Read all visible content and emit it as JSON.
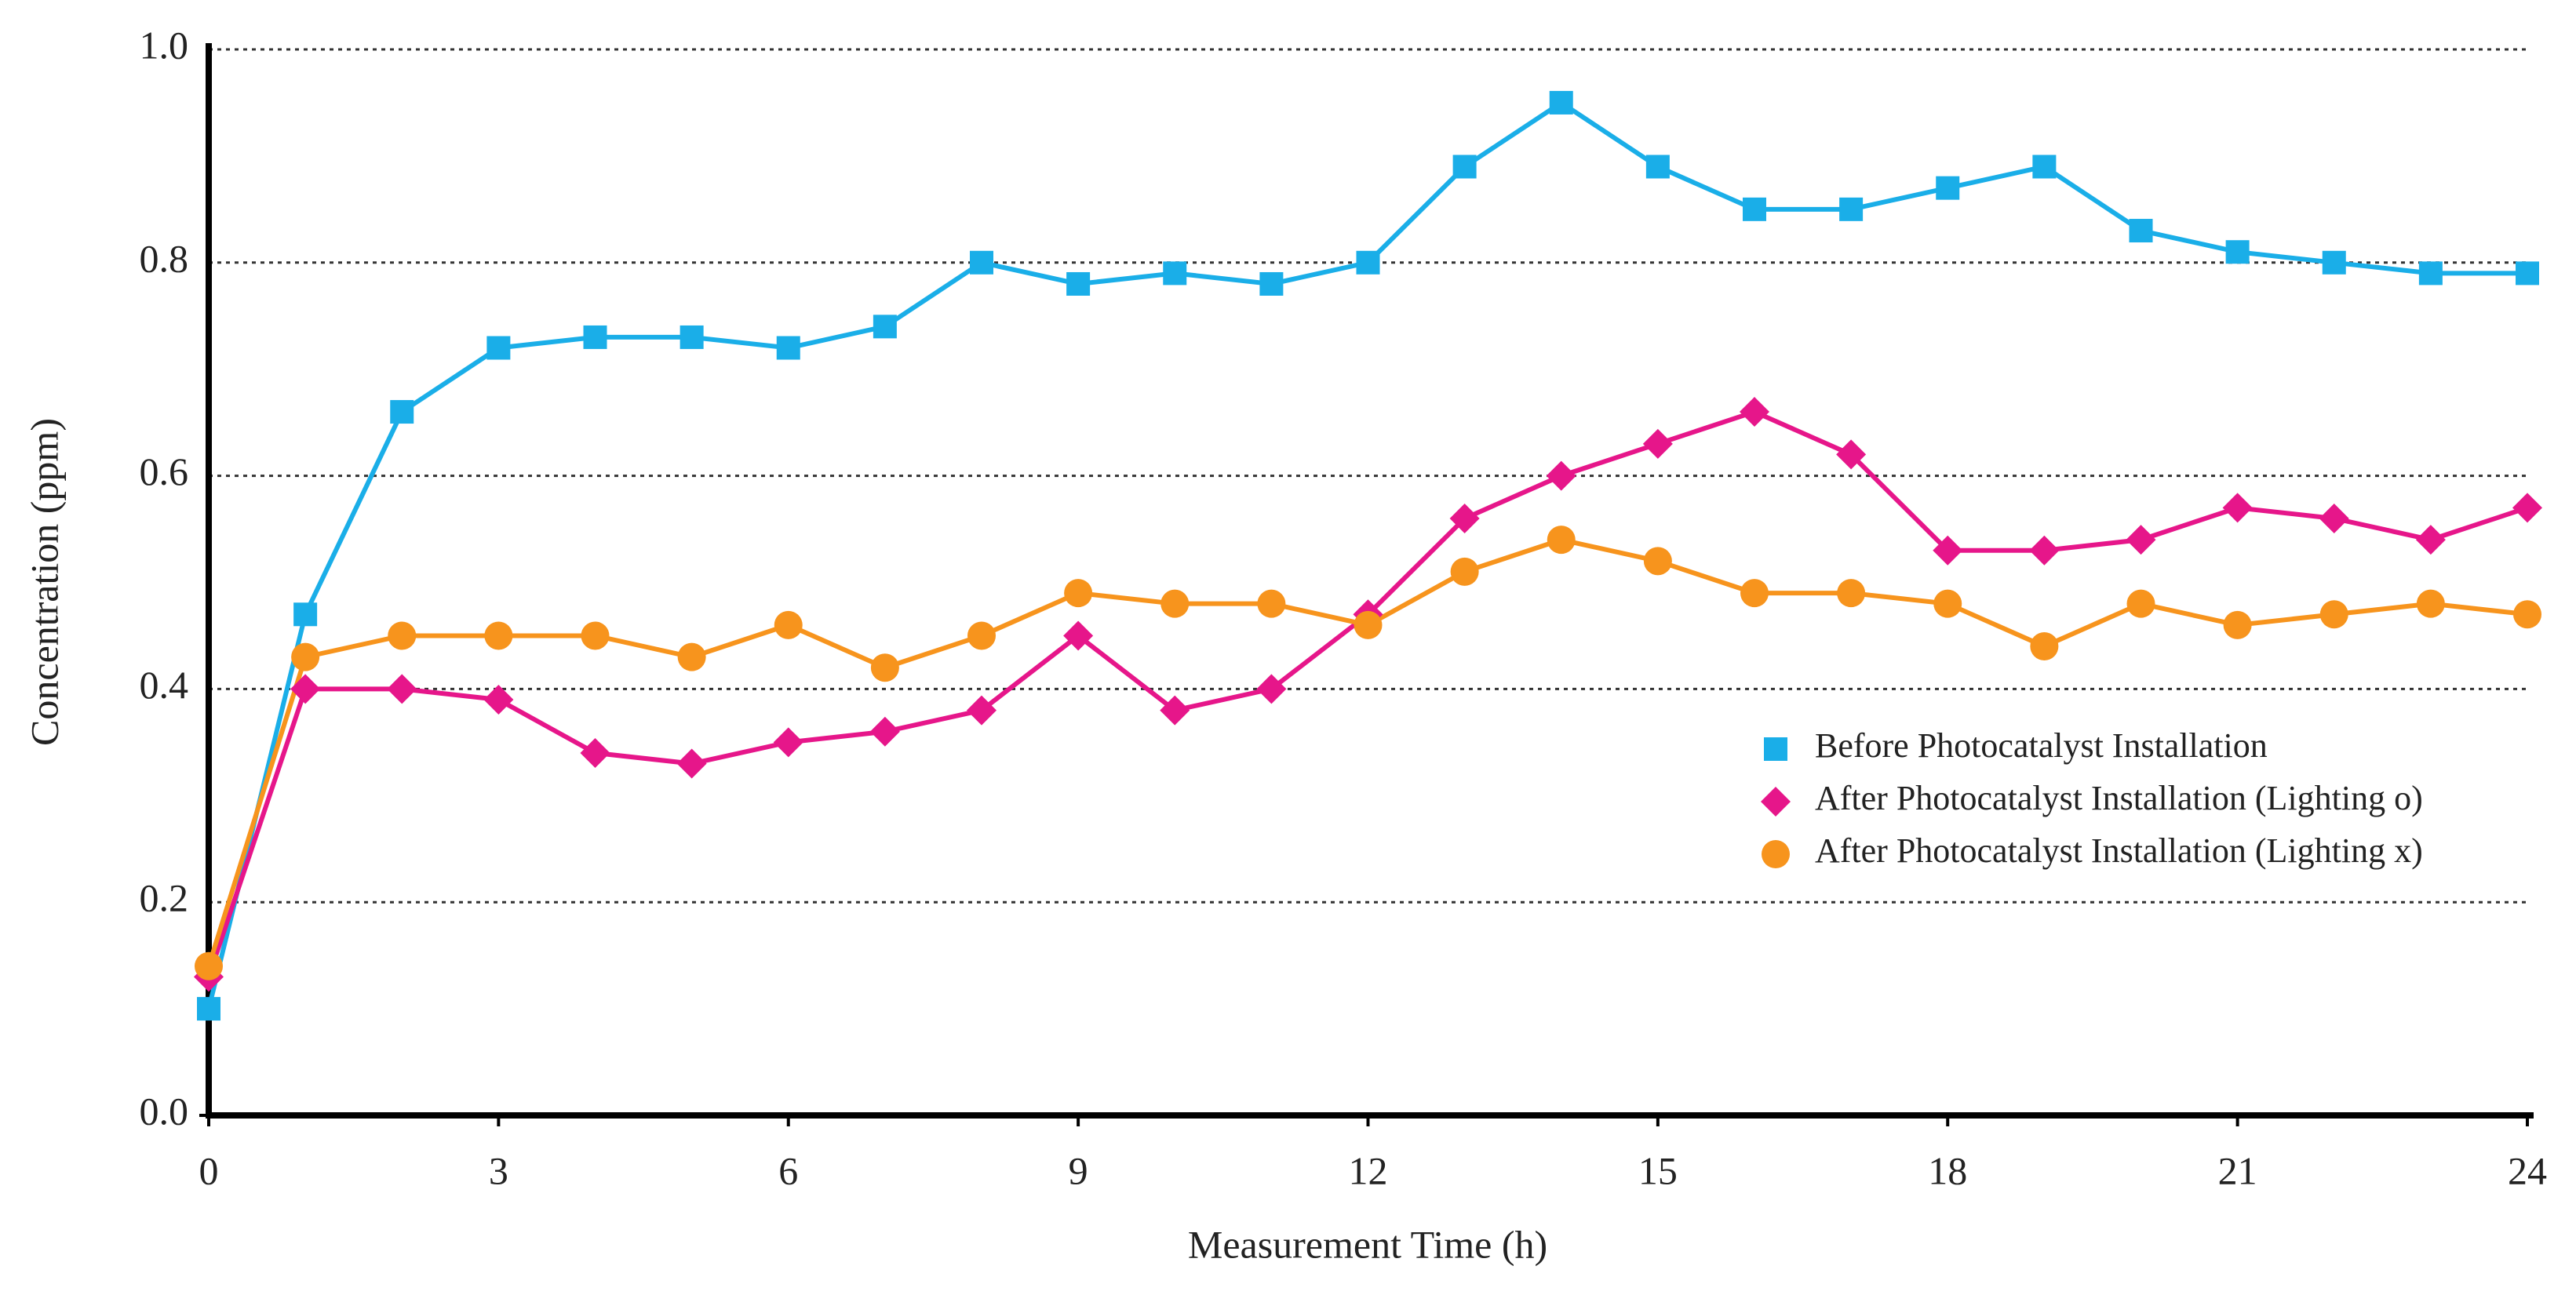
{
  "chart_data": {
    "type": "line",
    "x": [
      0,
      1,
      2,
      3,
      4,
      5,
      6,
      7,
      8,
      9,
      10,
      11,
      12,
      13,
      14,
      15,
      16,
      17,
      18,
      19,
      20,
      21,
      22,
      23,
      24
    ],
    "xlabel": "Measurement Time (h)",
    "ylabel": "Concentration (ppm)",
    "xlim": [
      0,
      24
    ],
    "xticks": [
      0,
      3,
      6,
      9,
      12,
      15,
      18,
      21,
      24
    ],
    "ylim": [
      0,
      1
    ],
    "yticks": [
      {
        "value": 0,
        "label": "0.0"
      },
      {
        "value": 0.2,
        "label": "0.2"
      },
      {
        "value": 0.4,
        "label": "0.4"
      },
      {
        "value": 0.6,
        "label": "0.6"
      },
      {
        "value": 0.8,
        "label": "0.8"
      },
      {
        "value": 1,
        "label": "1.0"
      }
    ],
    "grid": true,
    "legend": "right",
    "series": [
      {
        "name": "Before Photocatalyst Installation",
        "color": "#1aaee8",
        "marker": "square",
        "values": [
          0.1,
          0.47,
          0.66,
          0.72,
          0.73,
          0.73,
          0.72,
          0.74,
          0.8,
          0.78,
          0.79,
          0.78,
          0.8,
          0.89,
          0.95,
          0.89,
          0.85,
          0.85,
          0.87,
          0.89,
          0.83,
          0.81,
          0.8,
          0.79,
          0.79
        ]
      },
      {
        "name": "After Photocatalyst Installation (Lighting o)",
        "color": "#e6168a",
        "marker": "diamond",
        "values": [
          0.13,
          0.4,
          0.4,
          0.39,
          0.34,
          0.33,
          0.35,
          0.36,
          0.38,
          0.45,
          0.38,
          0.4,
          0.47,
          0.56,
          0.6,
          0.63,
          0.66,
          0.62,
          0.53,
          0.53,
          0.54,
          0.57,
          0.56,
          0.54,
          0.57
        ]
      },
      {
        "name": "After Photocatalyst Installation (Lighting x)",
        "color": "#f7941d",
        "marker": "circle",
        "values": [
          0.14,
          0.43,
          0.45,
          0.45,
          0.45,
          0.43,
          0.46,
          0.42,
          0.45,
          0.49,
          0.48,
          0.48,
          0.46,
          0.51,
          0.54,
          0.52,
          0.49,
          0.49,
          0.48,
          0.44,
          0.48,
          0.46,
          0.47,
          0.48,
          0.47
        ]
      }
    ]
  }
}
